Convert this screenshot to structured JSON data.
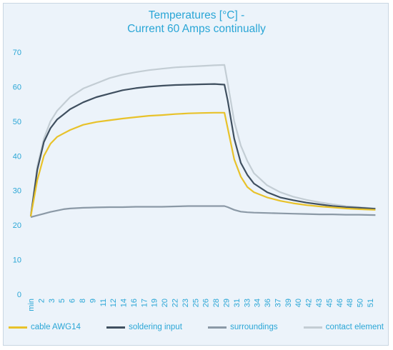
{
  "chart_data": {
    "type": "line",
    "title_lines": [
      "Temperatures [°C] -",
      "Current 60 Amps continually"
    ],
    "xlabel": "",
    "ylabel": "",
    "ylim": [
      0,
      70
    ],
    "yticks": [
      0,
      10,
      20,
      30,
      40,
      50,
      60,
      70
    ],
    "xlim": [
      0,
      53
    ],
    "x_ticks": [
      "min",
      "2",
      "3",
      "5",
      "6",
      "8",
      "9",
      "11",
      "12",
      "14",
      "16",
      "17",
      "19",
      "20",
      "22",
      "23",
      "25",
      "26",
      "28",
      "29",
      "31",
      "33",
      "34",
      "36",
      "37",
      "39",
      "40",
      "42",
      "43",
      "45",
      "46",
      "48",
      "50",
      "51"
    ],
    "grid": false,
    "legend_position": "bottom",
    "series": [
      {
        "name": "cable AWG14",
        "color": "#e8c22a",
        "x": [
          0,
          1,
          2,
          3,
          4,
          5,
          6,
          8,
          10,
          12,
          14,
          16,
          18,
          20,
          22,
          24,
          26,
          28,
          29.5,
          30,
          31,
          32,
          33,
          34,
          36,
          38,
          40,
          42,
          44,
          46,
          48,
          50,
          52.5
        ],
        "y": [
          22.5,
          33,
          40,
          43.5,
          45.5,
          46.5,
          47.5,
          49,
          49.8,
          50.3,
          50.8,
          51.2,
          51.6,
          51.8,
          52.1,
          52.3,
          52.4,
          52.5,
          52.5,
          48,
          39,
          34,
          31,
          29.5,
          28,
          27,
          26.3,
          25.8,
          25.4,
          25.1,
          24.8,
          24.6,
          24.4
        ]
      },
      {
        "name": "soldering input",
        "color": "#3f4f5f",
        "x": [
          0,
          1,
          2,
          3,
          4,
          5,
          6,
          8,
          10,
          12,
          14,
          16,
          18,
          20,
          22,
          24,
          26,
          28,
          29.5,
          30,
          31,
          32,
          33,
          34,
          36,
          38,
          40,
          42,
          44,
          46,
          48,
          50,
          52.5
        ],
        "y": [
          22.5,
          36,
          44,
          48,
          50.5,
          52,
          53.5,
          55.5,
          57,
          58,
          59,
          59.6,
          60,
          60.3,
          60.5,
          60.6,
          60.7,
          60.8,
          60.6,
          56,
          45,
          38,
          34.5,
          32,
          29.5,
          28,
          27.2,
          26.5,
          26,
          25.5,
          25.2,
          25,
          24.7
        ]
      },
      {
        "name": "surroundings",
        "color": "#8b99a6",
        "x": [
          0,
          1,
          2,
          3,
          4,
          5,
          6,
          8,
          10,
          12,
          14,
          16,
          18,
          20,
          22,
          24,
          26,
          28,
          29.5,
          30,
          31,
          32,
          33,
          34,
          36,
          38,
          40,
          42,
          44,
          46,
          48,
          50,
          52.5
        ],
        "y": [
          22.3,
          22.8,
          23.3,
          23.8,
          24.2,
          24.6,
          24.8,
          25,
          25.1,
          25.2,
          25.2,
          25.3,
          25.3,
          25.3,
          25.4,
          25.5,
          25.5,
          25.5,
          25.5,
          25.2,
          24.4,
          23.9,
          23.7,
          23.6,
          23.5,
          23.4,
          23.3,
          23.2,
          23.1,
          23.1,
          23,
          23,
          22.9
        ]
      },
      {
        "name": "contact element",
        "color": "#c3cdd4",
        "x": [
          0,
          1,
          2,
          3,
          4,
          5,
          6,
          8,
          10,
          12,
          14,
          16,
          18,
          20,
          22,
          24,
          26,
          28,
          29.5,
          30,
          31,
          32,
          33,
          34,
          36,
          38,
          40,
          42,
          44,
          46,
          48,
          50,
          52.5
        ],
        "y": [
          22.5,
          37,
          45,
          50,
          53,
          55,
          57,
          59.5,
          61,
          62.5,
          63.5,
          64.2,
          64.8,
          65.2,
          65.6,
          65.8,
          66,
          66.2,
          66.3,
          61,
          50,
          43,
          38.5,
          35,
          31.5,
          29.5,
          28.2,
          27.3,
          26.6,
          26,
          25.5,
          25.2,
          24.8
        ]
      }
    ]
  }
}
